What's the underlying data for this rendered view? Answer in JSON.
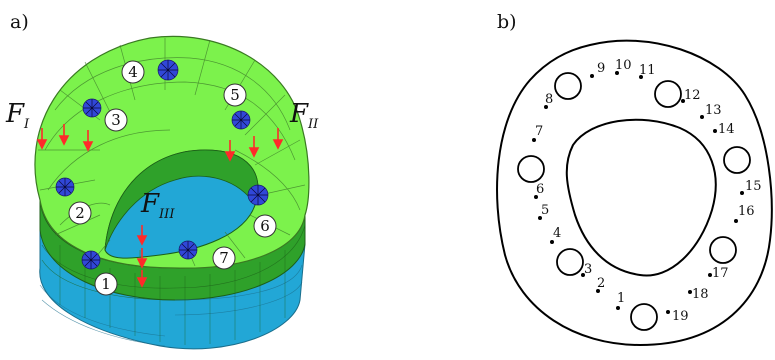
{
  "panels": {
    "a": {
      "label": "a)",
      "bolt_labels": [
        "1",
        "2",
        "3",
        "4",
        "5",
        "6",
        "7"
      ],
      "forces": [
        {
          "main": "F",
          "sub": "I"
        },
        {
          "main": "F",
          "sub": "II"
        },
        {
          "main": "F",
          "sub": "III"
        }
      ],
      "colors": {
        "top": "#7cf24c",
        "mid": "#2fa12a",
        "bottom": "#22a7d6",
        "arrow": "#ff2a2a",
        "bolt": "#1f3bd6"
      }
    },
    "b": {
      "label": "b)",
      "point_labels": [
        "1",
        "2",
        "3",
        "4",
        "5",
        "6",
        "7",
        "8",
        "9",
        "10",
        "11",
        "12",
        "13",
        "14",
        "15",
        "16",
        "17",
        "18",
        "19"
      ]
    }
  }
}
